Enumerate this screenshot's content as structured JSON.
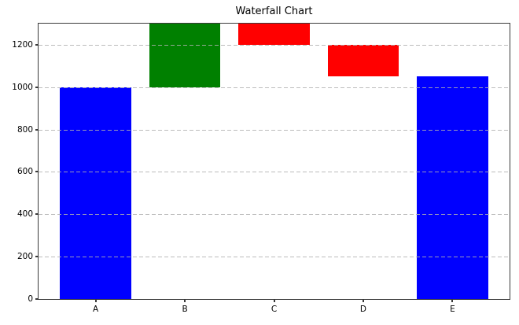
{
  "chart_data": {
    "type": "bar",
    "subtype": "waterfall",
    "title": "Waterfall Chart",
    "categories": [
      "A",
      "B",
      "C",
      "D",
      "E"
    ],
    "series": [
      {
        "name": "A",
        "kind": "total",
        "value": 1000,
        "start": 0,
        "end": 1000,
        "color": "#0000ff"
      },
      {
        "name": "B",
        "kind": "increase",
        "value": 300,
        "start": 1000,
        "end": 1300,
        "color": "#008000"
      },
      {
        "name": "C",
        "kind": "decrease",
        "value": -100,
        "start": 1300,
        "end": 1200,
        "color": "#ff0000"
      },
      {
        "name": "D",
        "kind": "decrease",
        "value": -150,
        "start": 1200,
        "end": 1050,
        "color": "#ff0000"
      },
      {
        "name": "E",
        "kind": "total",
        "value": 1050,
        "start": 0,
        "end": 1050,
        "color": "#0000ff"
      }
    ],
    "xlabel": "",
    "ylabel": "",
    "ylim": [
      0,
      1300
    ],
    "yticks": [
      0,
      200,
      400,
      600,
      800,
      1000,
      1200
    ],
    "xlim": [
      -0.64,
      4.64
    ],
    "bar_width": 0.8,
    "grid": true,
    "grid_axis": "y",
    "grid_linestyle": "dashed",
    "grid_color": "#b0b0b0",
    "legend_position": "none",
    "colors": {
      "total": "#0000ff",
      "increase": "#008000",
      "decrease": "#ff0000"
    },
    "spine_color": "#3a3a3a",
    "background": "#ffffff"
  }
}
